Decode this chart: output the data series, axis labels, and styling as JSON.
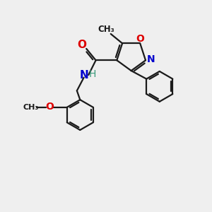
{
  "bg_color": "#efefef",
  "bond_color": "#1a1a1a",
  "atom_colors": {
    "O": "#dd0000",
    "N": "#0000cc",
    "H": "#3a9a7a",
    "C": "#1a1a1a"
  },
  "figsize": [
    3.0,
    3.0
  ],
  "dpi": 100,
  "lw": 1.6
}
